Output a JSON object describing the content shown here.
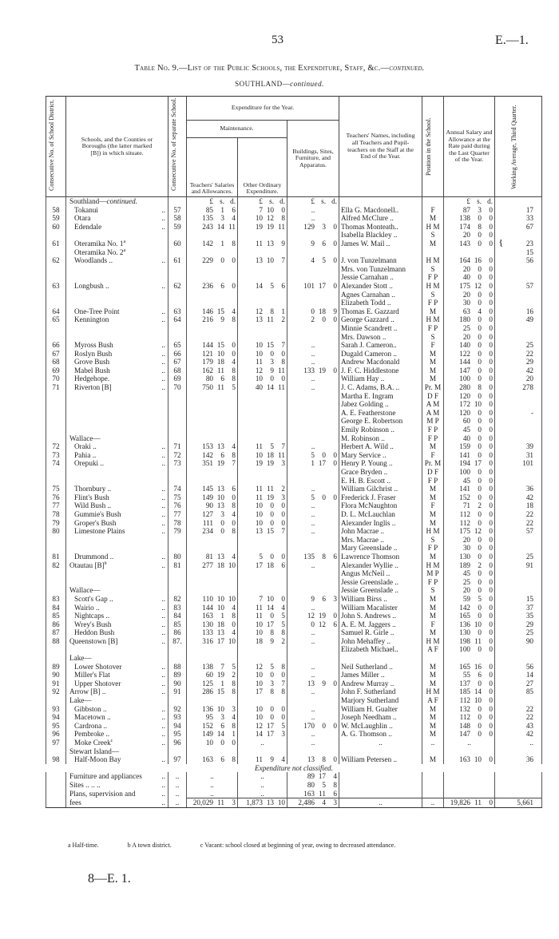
{
  "page": {
    "number": "53",
    "ref": "E.—1.",
    "footer_ref": "8—E. 1."
  },
  "title": {
    "main": "Table No. 9.—List of the Public Schools, the Expenditure, Staff, &c.—",
    "main_em": "continued.",
    "region": "SOUTHLAND—",
    "region_em": "continued."
  },
  "headers": {
    "district_no": "Consecutive No. of School District.",
    "schools": "Schools, and the Counties or Boroughs (the latter marked [B]) in which situate.",
    "school_no": "Consecutive No. of separate School.",
    "expenditure": "Expenditure for the Year.",
    "maintenance": "Maintenance.",
    "salaries": "Teachers' Salaries and Allowances.",
    "other": "Other Ordinary Expenditure.",
    "buildings": "Buildings, Sites, Furniture, and Apparatus.",
    "teachers": "Teachers' Names, including all Teachers and Pupil-teachers on the Staff at the End of the Year.",
    "position": "Position in the School.",
    "salary": "Annual Salary and Allowance at the Rate paid during the Last Quarter of the Year.",
    "attendance": "Working Average, Third Quarter."
  },
  "currency_units": [
    "£",
    "s.",
    "d."
  ],
  "leader": "..",
  "rows": [
    {
      "school": "Southland—",
      "school_em": "continued.",
      "heading": true,
      "currency": true
    },
    {
      "no": "58",
      "school": "Tokanui",
      "sub": true,
      "school_no": "57",
      "salaries": "85 1 6",
      "other": "7 10 0",
      "buildings": "..",
      "teacher": "Ella G. Macdonell..",
      "position": "F",
      "salary": "87 3 0",
      "attendance": "17"
    },
    {
      "no": "59",
      "school": "Otara",
      "sub": true,
      "school_no": "58",
      "salaries": "135 3 4",
      "other": "10 12 8",
      "buildings": "..",
      "teacher": "Alfred McClure ..",
      "position": "M",
      "salary": "138 0 0",
      "attendance": "33"
    },
    {
      "no": "60",
      "school": "Edendale",
      "sub": true,
      "school_no": "59",
      "salaries": "243 14 11",
      "other": "19 19 11",
      "buildings": "129 3 0",
      "teacher": "Thomas Monteath..",
      "position": "H M",
      "salary": "174 8 0",
      "attendance": "67"
    },
    {
      "teacher": "Isabella Blackley ..",
      "position": "S",
      "salary": "20 0 0"
    },
    {
      "gap": true,
      "no": "61",
      "school": "Oteramika No. 1",
      "note": "a",
      "sub": true,
      "noleader": true,
      "school_no": "60",
      "salaries": "142 1 8",
      "other": "11 13 9",
      "buildings": "9 6 0",
      "teacher": "James W. Mail ..",
      "position": "M",
      "salary": "143 0 0",
      "attendance": "23",
      "brace": true
    },
    {
      "school": "Oteramika No. 2",
      "note": "a",
      "sub": true,
      "noleader": true,
      "attendance": "15"
    },
    {
      "no": "62",
      "school": "Woodlands ..",
      "sub": true,
      "school_no": "61",
      "salaries": "229 0 0",
      "other": "13 10 7",
      "buildings": "4 5 0",
      "teacher": "J. von Tunzelmann",
      "position": "H M",
      "salary": "164 16 0",
      "attendance": "56"
    },
    {
      "teacher": "Mrs. von Tunzelmann",
      "position": "S",
      "salary": "20 0 0"
    },
    {
      "teacher": "Jessie Carnahan ..",
      "position": "F P",
      "salary": "40 0 0"
    },
    {
      "no": "63",
      "school": "Longbush ..",
      "sub": true,
      "school_no": "62",
      "salaries": "236 6 0",
      "other": "14 5 6",
      "buildings": "101 17 0",
      "teacher": "Alexander Stott ..",
      "position": "H M",
      "salary": "175 12 0",
      "attendance": "57"
    },
    {
      "teacher": "Agnes Carnahan ..",
      "position": "S",
      "salary": "20 0 0"
    },
    {
      "teacher": "Elizabeth Todd ..",
      "position": "F P",
      "salary": "30 0 0"
    },
    {
      "no": "64",
      "school": "One-Tree Point",
      "sub": true,
      "school_no": "63",
      "salaries": "146 15 4",
      "other": "12 8 1",
      "buildings": "0 18 9",
      "teacher": "Thomas E. Gazzard",
      "position": "M",
      "salary": "63 4 0",
      "attendance": "16"
    },
    {
      "no": "65",
      "school": "Kennington",
      "sub": true,
      "school_no": "64",
      "salaries": "216 9 8",
      "other": "13 11 2",
      "buildings": "2 0 0",
      "teacher": "George Gazzard ..",
      "position": "H M",
      "salary": "180 0 0",
      "attendance": "49"
    },
    {
      "teacher": "Minnie Scandrett ..",
      "position": "F P",
      "salary": "25 0 0"
    },
    {
      "teacher": "Mrs. Dawson ..",
      "position": "S",
      "salary": "20 0 0"
    },
    {
      "no": "66",
      "school": "Myross Bush",
      "sub": true,
      "school_no": "65",
      "salaries": "144 15 0",
      "other": "10 15 7",
      "buildings": "..",
      "teacher": "Sarah J. Cameron..",
      "position": "F",
      "salary": "140 0 0",
      "attendance": "25"
    },
    {
      "no": "67",
      "school": "Roslyn Bush",
      "sub": true,
      "school_no": "66",
      "salaries": "121 10 0",
      "other": "10 0 0",
      "buildings": "..",
      "teacher": "Dugald Cameron ..",
      "position": "M",
      "salary": "122 0 0",
      "attendance": "22"
    },
    {
      "no": "68",
      "school": "Grove Bush",
      "sub": true,
      "school_no": "67",
      "salaries": "179 18 4",
      "other": "11 3 8",
      "buildings": "..",
      "teacher": "Andrew Macdonald",
      "position": "M",
      "salary": "144 0 0",
      "attendance": "29"
    },
    {
      "no": "69",
      "school": "Mabel Bush",
      "sub": true,
      "school_no": "68",
      "salaries": "162 11 8",
      "other": "12 9 11",
      "buildings": "133 19 0",
      "teacher": "J. F. C. Hiddlestone",
      "position": "M",
      "salary": "147 0 0",
      "attendance": "42"
    },
    {
      "no": "70",
      "school": "Hedgehope.",
      "sub": true,
      "school_no": "69",
      "salaries": "80 6 8",
      "other": "10 0 0",
      "buildings": "..",
      "teacher": "William Hay ..",
      "position": "M",
      "salary": "100 0 0",
      "attendance": "20"
    },
    {
      "no": "71",
      "school": "Riverton [B]",
      "sub": true,
      "school_no": "70",
      "salaries": "750 11 5",
      "other": "40 14 11",
      "buildings": "..",
      "teacher": "J. C. Adams, B.A. ..",
      "position": "Pr. M",
      "salary": "280 8 0",
      "attendance": "278"
    },
    {
      "teacher": "Martha E. Ingram",
      "position": "D F",
      "salary": "120 0 0"
    },
    {
      "teacher": "Jabez Golding ..",
      "position": "A M",
      "salary": "172 10 0"
    },
    {
      "teacher": "A. E. Featherstone",
      "position": "A M",
      "salary": "120 0 0",
      "attendance": "-"
    },
    {
      "teacher": "George E. Robertson",
      "position": "M P",
      "salary": "60 0 0"
    },
    {
      "teacher": "Emily Robinson ..",
      "position": "F P",
      "salary": "45 0 0"
    },
    {
      "school": "Wallace—",
      "heading": true,
      "teacher": "M. Robinson ..",
      "position": "F P",
      "salary": "40 0 0"
    },
    {
      "no": "72",
      "school": "Oraki ..",
      "sub": true,
      "school_no": "71",
      "salaries": "153 13 4",
      "other": "11 5 7",
      "buildings": "..",
      "teacher": "Herbert A. Wild ..",
      "position": "M",
      "salary": "159 0 0",
      "attendance": "39"
    },
    {
      "no": "73",
      "school": "Pahia ..",
      "sub": true,
      "school_no": "72",
      "salaries": "142 6 8",
      "other": "10 18 11",
      "buildings": "5 0 0",
      "teacher": "Mary Service ..",
      "position": "F",
      "salary": "141 0 0",
      "attendance": "31"
    },
    {
      "no": "74",
      "school": "Orepuki ..",
      "sub": true,
      "school_no": "73",
      "salaries": "351 19 7",
      "other": "19 19 3",
      "buildings": "1 17 0",
      "teacher": "Henry P. Young ..",
      "position": "Pr. M",
      "salary": "194 17 0",
      "attendance": "101"
    },
    {
      "teacher": "Grace Bryden ..",
      "position": "D F",
      "salary": "100 0 0"
    },
    {
      "teacher": "E. H. B. Escott ..",
      "position": "F P",
      "salary": "45 0 0"
    },
    {
      "gap": true,
      "no": "75",
      "school": "Thornbury ..",
      "sub": true,
      "school_no": "74",
      "salaries": "145 13 6",
      "other": "11 11 2",
      "buildings": "..",
      "teacher": "William Gilchrist ..",
      "position": "M",
      "salary": "141 0 0",
      "attendance": "36"
    },
    {
      "no": "76",
      "school": "Flint's Bush",
      "sub": true,
      "school_no": "75",
      "salaries": "149 10 0",
      "other": "11 19 3",
      "buildings": "5 0 0",
      "teacher": "Frederick J. Fraser",
      "position": "M",
      "salary": "152 0 0",
      "attendance": "42"
    },
    {
      "no": "77",
      "school": "Wild Bush ..",
      "sub": true,
      "school_no": "76",
      "salaries": "90 13 8",
      "other": "10 0 0",
      "buildings": "..",
      "teacher": "Flora McNaughton",
      "position": "F",
      "salary": "71 2 0",
      "attendance": "18"
    },
    {
      "no": "78",
      "school": "Gummie's Bush",
      "sub": true,
      "school_no": "77",
      "salaries": "127 3 4",
      "other": "10 0 0",
      "buildings": "..",
      "teacher": "D. L. McLauchlan",
      "position": "M",
      "salary": "112 0 0",
      "attendance": "22"
    },
    {
      "no": "79",
      "school": "Groper's Bush",
      "sub": true,
      "school_no": "78",
      "salaries": "111 0 0",
      "other": "10 0 0",
      "buildings": "..",
      "teacher": "Alexander Inglis ..",
      "position": "M",
      "salary": "112 0 0",
      "attendance": "22"
    },
    {
      "no": "80",
      "school": "Limestone Plains",
      "sub": true,
      "school_no": "79",
      "salaries": "234 0 8",
      "other": "13 15 7",
      "buildings": "..",
      "teacher": "John Macrae ..",
      "position": "H M",
      "salary": "175 12 0",
      "attendance": "57"
    },
    {
      "teacher": "Mrs. Macrae ..",
      "position": "S",
      "salary": "20 0 0"
    },
    {
      "teacher": "Mary Greenslade ..",
      "position": "F P",
      "salary": "30 0 0"
    },
    {
      "gap": true,
      "no": "81",
      "school": "Drummond ..",
      "sub": true,
      "school_no": "80",
      "salaries": "81 13 4",
      "other": "5 0 0",
      "buildings": "135 8 6",
      "teacher": "Lawrence Thomson",
      "position": "M",
      "salary": "130 0 0",
      "attendance": "25"
    },
    {
      "no": "82",
      "school": "Otautau [B]",
      "note": "b",
      "school_no": "81",
      "salaries": "277 18 10",
      "other": "17 18 6",
      "buildings": "..",
      "teacher": "Alexander Wyllie ..",
      "position": "H M",
      "salary": "189 2 0",
      "attendance": "91"
    },
    {
      "teacher": "Angus McNeil ..",
      "position": "M P",
      "salary": "45 0 0"
    },
    {
      "teacher": "Jessie Greenslade ..",
      "position": "F P",
      "salary": "25 0 0"
    },
    {
      "school": "Wallace—",
      "heading": true,
      "teacher": "Jessie Greenslade ..",
      "position": "S",
      "salary": "20 0 0"
    },
    {
      "no": "83",
      "school": "Scott's Gap ..",
      "sub": true,
      "school_no": "82",
      "salaries": "110 10 10",
      "other": "7 10 0",
      "buildings": "9 6 3",
      "teacher": "William Birss ..",
      "position": "M",
      "salary": "59 5 0",
      "attendance": "15"
    },
    {
      "no": "84",
      "school": "Wairio ..",
      "sub": true,
      "school_no": "83",
      "salaries": "144 10 4",
      "other": "11 14 4",
      "buildings": "..",
      "teacher": "William Macalister",
      "position": "M",
      "salary": "142 0 0",
      "attendance": "37"
    },
    {
      "no": "85",
      "school": "Nightcaps ..",
      "sub": true,
      "school_no": "84",
      "salaries": "163 1 8",
      "other": "11 0 5",
      "buildings": "12 19 0",
      "teacher": "John S. Andrews ..",
      "position": "M",
      "salary": "165 0 0",
      "attendance": "35"
    },
    {
      "no": "86",
      "school": "Wrey's Bush",
      "sub": true,
      "school_no": "85",
      "salaries": "130 18 0",
      "other": "10 17 5",
      "buildings": "0 12 6",
      "teacher": "A. E. M. Jaggers ..",
      "position": "F",
      "salary": "136 10 0",
      "attendance": "29"
    },
    {
      "no": "87",
      "school": "Heddon Bush",
      "sub": true,
      "school_no": "86",
      "salaries": "133 13 4",
      "other": "10 8 8",
      "buildings": "..",
      "teacher": "Samuel R. Girle ..",
      "position": "M",
      "salary": "130 0 0",
      "attendance": "25"
    },
    {
      "no": "88",
      "school": "Queenstown [B]",
      "school_no": "87.",
      "salaries": "316 17 10",
      "other": "18 9 2",
      "buildings": "..",
      "teacher": "John Mehaffey ..",
      "position": "H M",
      "salary": "198 11 0",
      "attendance": "90"
    },
    {
      "teacher": "Elizabeth Michael..",
      "position": "A F",
      "salary": "100 0 0"
    },
    {
      "gapsm": true,
      "school": "Lake—",
      "heading": true
    },
    {
      "no": "89",
      "school": "Lower Shotover",
      "sub": true,
      "school_no": "88",
      "salaries": "138 7 5",
      "other": "12 5 8",
      "buildings": "..",
      "teacher": "Neil Sutherland ..",
      "position": "M",
      "salary": "165 16 0",
      "attendance": "56"
    },
    {
      "no": "90",
      "school": "Miller's Flat",
      "sub": true,
      "school_no": "89",
      "salaries": "60 19 2",
      "other": "10 0 0",
      "buildings": "..",
      "teacher": "James Miller ..",
      "position": "M",
      "salary": "55 6 0",
      "attendance": "14"
    },
    {
      "no": "91",
      "school": "Upper Shotover",
      "sub": true,
      "school_no": "90",
      "salaries": "125 1 8",
      "other": "10 3 7",
      "buildings": "13 9 0",
      "teacher": "Andrew Murray ..",
      "position": "M",
      "salary": "137 0 0",
      "attendance": "27"
    },
    {
      "no": "92",
      "school": "Arrow [B] ..",
      "school_no": "91",
      "salaries": "286 15 8",
      "other": "17 8 8",
      "buildings": "..",
      "teacher": "John F. Sutherland",
      "position": "H M",
      "salary": "185 14 0",
      "attendance": "85"
    },
    {
      "school": "Lake—",
      "heading": true,
      "teacher": "Marjory Sutherland",
      "position": "A F",
      "salary": "112 10 0"
    },
    {
      "no": "93",
      "school": "Gibbston ..",
      "sub": true,
      "school_no": "92",
      "salaries": "136 10 3",
      "other": "10 0 0",
      "buildings": "..",
      "teacher": "William H. Gualter",
      "position": "M",
      "salary": "132 0 0",
      "attendance": "22"
    },
    {
      "no": "94",
      "school": "Macetown ..",
      "sub": true,
      "school_no": "93",
      "salaries": "95 3 4",
      "other": "10 0 0",
      "buildings": "..",
      "teacher": "Joseph Needham ..",
      "position": "M",
      "salary": "112 0 0",
      "attendance": "22"
    },
    {
      "no": "95",
      "school": "Cardrona ..",
      "sub": true,
      "school_no": "94",
      "salaries": "152 6 8",
      "other": "12 17 5",
      "buildings": "170 0 0",
      "teacher": "W. McLaughlin ..",
      "position": "M",
      "salary": "148 0 0",
      "attendance": "43"
    },
    {
      "no": "96",
      "school": "Pembroke ..",
      "sub": true,
      "school_no": "95",
      "salaries": "149 14 1",
      "other": "14 17 3",
      "buildings": "..",
      "teacher": "A. G. Thomson ..",
      "position": "M",
      "salary": "147 0 0",
      "attendance": "42"
    },
    {
      "no": "97",
      "school": "Moke Creek",
      "note": "c",
      "sub": true,
      "school_no": "96",
      "salaries": "10 0 0",
      "other": "..",
      "buildings": "..",
      "teacher": "..",
      "position": "..",
      "salary": "..",
      "attendance": ".."
    },
    {
      "school": "Stewart Island—",
      "heading": true
    },
    {
      "no": "98",
      "school": "Half-Moon Bay",
      "sub": true,
      "school_no": "97",
      "salaries": "163 6 8",
      "other": "11 9 4",
      "buildings": "13 8 0",
      "teacher": "William Petersen ..",
      "position": "M",
      "salary": "163 10 0",
      "attendance": "36"
    }
  ],
  "unclassified": {
    "heading": "Expenditure not classified.",
    "rows": [
      {
        "school": "Furniture and appliances",
        "school_no": "..",
        "salaries": "..",
        "other": "..",
        "buildings": "89 17 4"
      },
      {
        "school": "Sites .. .. ..",
        "school_no": "..",
        "salaries": "..",
        "other": "..",
        "buildings": "80 5 8"
      },
      {
        "school": "Plans, supervision and",
        "school_no": "..",
        "salaries": "..",
        "other": "..",
        "buildings": "163 11 6"
      }
    ],
    "totals": {
      "school": "fees",
      "school_no": "..",
      "salaries": "20,029 11 3",
      "other": "1,873 13 10",
      "buildings": "2,486 4 3",
      "teacher": "..",
      "position": "..",
      "salary": "19,826 11 0",
      "attendance": "5,661"
    }
  },
  "footnotes": [
    "a Half-time.",
    "b A town district.",
    "c Vacant: school closed at beginning of year, owing to decreased attendance."
  ]
}
